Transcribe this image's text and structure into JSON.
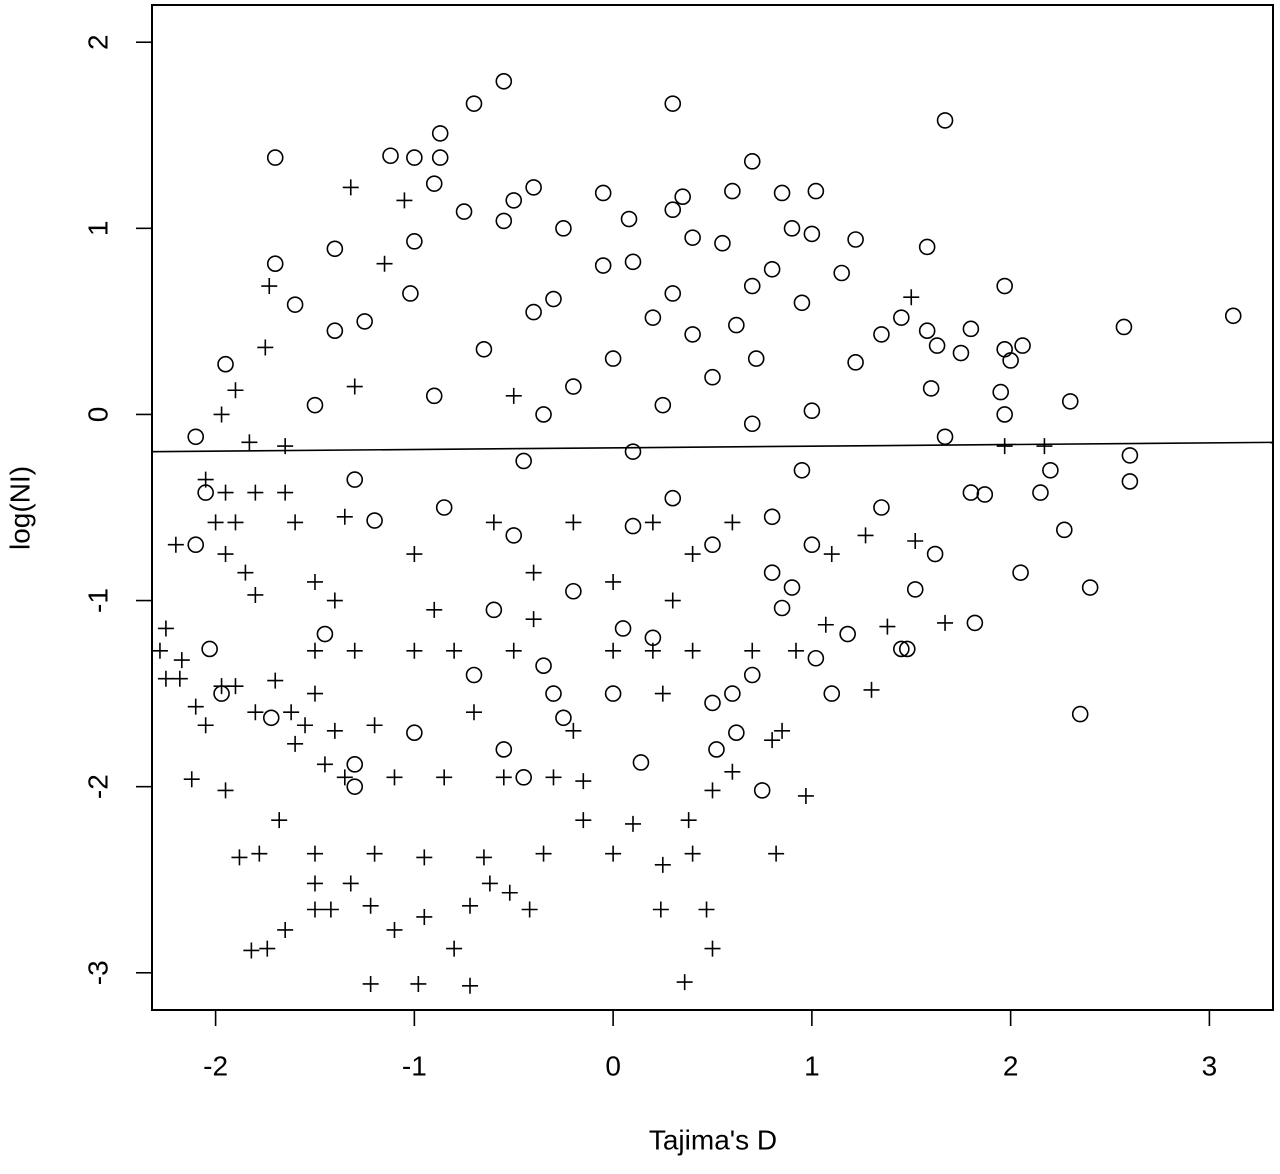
{
  "chart_data": {
    "type": "scatter",
    "x_label": "Tajima's D",
    "y_label": "log(NI)",
    "xlim": [
      -2.32,
      3.32
    ],
    "ylim": [
      -3.2,
      2.2
    ],
    "xticks": [
      -2,
      -1,
      0,
      1,
      2,
      3
    ],
    "yticks": [
      -3,
      -2,
      -1,
      0,
      1,
      2
    ],
    "series": [
      {
        "marker": "circle",
        "color": "#000000",
        "x": [
          -0.55,
          -0.7,
          0.3,
          1.67,
          -0.87,
          -1.7,
          -1.12,
          -1.0,
          -0.87,
          0.7,
          -0.9,
          -0.4,
          0.6,
          1.02,
          0.85,
          -0.05,
          0.35,
          -0.5,
          -0.75,
          0.3,
          0.08,
          -0.55,
          0.9,
          -0.25,
          1.0,
          1.22,
          -1.0,
          1.58,
          -1.4,
          0.55,
          0.4,
          -1.7,
          0.1,
          0.8,
          1.15,
          -0.05,
          1.97,
          0.7,
          -1.02,
          -0.3,
          0.3,
          -1.6,
          0.95,
          1.45,
          -0.4,
          0.2,
          3.12,
          2.57,
          1.8,
          -1.25,
          0.62,
          1.58,
          -1.4,
          0.4,
          1.35,
          2.06,
          1.63,
          1.75,
          1.97,
          -0.65,
          0.0,
          0.72,
          -1.95,
          2.0,
          1.22,
          0.5,
          -0.2,
          1.6,
          1.95,
          -0.9,
          0.25,
          2.3,
          1.0,
          -1.5,
          1.97,
          -0.35,
          0.7,
          -2.1,
          1.67,
          0.1,
          2.6,
          -0.45,
          2.2,
          0.95,
          -1.3,
          2.6,
          -2.05,
          1.8,
          1.87,
          2.15,
          0.3,
          -0.85,
          1.35,
          0.8,
          -1.2,
          2.27,
          0.1,
          -0.5,
          1.62,
          -2.1,
          1.0,
          0.5,
          2.05,
          0.8,
          2.4,
          1.52,
          -0.2,
          0.9,
          0.85,
          -0.6,
          1.82,
          0.05,
          1.18,
          -1.45,
          0.2,
          1.45,
          1.48,
          -2.03,
          1.02,
          -0.35,
          0.7,
          -0.7,
          -1.97,
          1.1,
          0.6,
          0.0,
          -0.3,
          0.5,
          2.35,
          -1.72,
          -0.25,
          0.62,
          -1.0,
          0.52,
          -0.55,
          0.14,
          -1.3,
          -0.45,
          0.75,
          -1.3
        ],
        "values": [
          1.79,
          1.67,
          1.67,
          1.58,
          1.51,
          1.38,
          1.39,
          1.38,
          1.38,
          1.36,
          1.24,
          1.22,
          1.2,
          1.2,
          1.19,
          1.19,
          1.17,
          1.15,
          1.09,
          1.1,
          1.05,
          1.04,
          1.0,
          1.0,
          0.97,
          0.94,
          0.93,
          0.9,
          0.89,
          0.92,
          0.95,
          0.81,
          0.82,
          0.78,
          0.76,
          0.8,
          0.69,
          0.69,
          0.65,
          0.62,
          0.65,
          0.59,
          0.6,
          0.52,
          0.55,
          0.52,
          0.53,
          0.47,
          0.46,
          0.5,
          0.48,
          0.45,
          0.45,
          0.43,
          0.43,
          0.37,
          0.37,
          0.33,
          0.35,
          0.35,
          0.3,
          0.3,
          0.27,
          0.29,
          0.28,
          0.2,
          0.15,
          0.14,
          0.12,
          0.1,
          0.05,
          0.07,
          0.02,
          0.05,
          0.0,
          0.0,
          -0.05,
          -0.12,
          -0.12,
          -0.2,
          -0.22,
          -0.25,
          -0.3,
          -0.3,
          -0.35,
          -0.36,
          -0.42,
          -0.42,
          -0.43,
          -0.42,
          -0.45,
          -0.5,
          -0.5,
          -0.55,
          -0.57,
          -0.62,
          -0.6,
          -0.65,
          -0.75,
          -0.7,
          -0.7,
          -0.7,
          -0.85,
          -0.85,
          -0.93,
          -0.94,
          -0.95,
          -0.93,
          -1.04,
          -1.05,
          -1.12,
          -1.15,
          -1.18,
          -1.18,
          -1.2,
          -1.26,
          -1.26,
          -1.26,
          -1.31,
          -1.35,
          -1.4,
          -1.4,
          -1.5,
          -1.5,
          -1.5,
          -1.5,
          -1.5,
          -1.55,
          -1.61,
          -1.63,
          -1.63,
          -1.71,
          -1.71,
          -1.8,
          -1.8,
          -1.87,
          -1.88,
          -1.95,
          -2.02,
          -2.0
        ]
      },
      {
        "marker": "plus",
        "color": "#000000",
        "x": [
          -1.32,
          -1.05,
          -1.15,
          -1.73,
          1.5,
          -1.75,
          -1.9,
          -1.97,
          -1.3,
          -0.5,
          -1.83,
          -1.65,
          -2.05,
          -1.95,
          -1.8,
          -1.65,
          -1.9,
          -1.6,
          -2.0,
          -1.35,
          2.17,
          1.97,
          1.52,
          1.67,
          1.1,
          1.27,
          -2.2,
          -1.95,
          -1.85,
          -1.5,
          -1.8,
          -1.4,
          -2.25,
          -2.28,
          -2.17,
          -2.25,
          -2.18,
          -1.97,
          -1.9,
          -1.7,
          -1.5,
          -2.1,
          -2.05,
          -1.8,
          -1.62,
          -1.55,
          -1.4,
          -1.2,
          -1.6,
          -1.45,
          -1.35,
          -1.1,
          -0.85,
          -0.55,
          -0.3,
          -0.15,
          -2.12,
          -1.95,
          -1.68,
          -1.88,
          -1.78,
          -1.5,
          -1.2,
          -0.95,
          -0.65,
          -0.35,
          0.0,
          -1.5,
          -1.32,
          -0.62,
          -0.52,
          -1.5,
          -1.42,
          -1.22,
          -0.95,
          -0.72,
          -0.42,
          0.24,
          0.47,
          -1.65,
          -1.1,
          -1.82,
          -1.74,
          -0.8,
          0.5,
          -1.22,
          -0.98,
          -0.72,
          0.36,
          0.25,
          0.4,
          0.82,
          0.97,
          0.5,
          0.6,
          0.8,
          0.85,
          1.3,
          1.38,
          1.07,
          0.92,
          0.4,
          0.0,
          -0.5,
          -1.0,
          -1.5,
          -1.3,
          -0.8,
          0.2,
          0.7,
          -0.2,
          0.2,
          -0.6,
          0.6,
          -1.0,
          -0.4,
          0.0,
          0.4,
          -0.9,
          -0.4,
          0.3,
          -0.7,
          -0.2,
          0.25,
          0.1,
          -0.15,
          0.38
        ],
        "values": [
          1.22,
          1.15,
          0.81,
          0.69,
          0.63,
          0.36,
          0.13,
          0.0,
          0.15,
          0.1,
          -0.15,
          -0.17,
          -0.35,
          -0.42,
          -0.42,
          -0.42,
          -0.58,
          -0.58,
          -0.58,
          -0.55,
          -0.17,
          -0.17,
          -0.68,
          -1.12,
          -0.75,
          -0.65,
          -0.7,
          -0.75,
          -0.85,
          -0.9,
          -0.97,
          -1.0,
          -1.15,
          -1.27,
          -1.32,
          -1.42,
          -1.42,
          -1.46,
          -1.46,
          -1.43,
          -1.5,
          -1.57,
          -1.67,
          -1.6,
          -1.6,
          -1.67,
          -1.7,
          -1.67,
          -1.77,
          -1.88,
          -1.95,
          -1.95,
          -1.95,
          -1.95,
          -1.95,
          -1.97,
          -1.96,
          -2.02,
          -2.18,
          -2.38,
          -2.36,
          -2.36,
          -2.36,
          -2.38,
          -2.38,
          -2.36,
          -2.36,
          -2.52,
          -2.52,
          -2.52,
          -2.57,
          -2.66,
          -2.66,
          -2.64,
          -2.7,
          -2.64,
          -2.66,
          -2.66,
          -2.66,
          -2.77,
          -2.77,
          -2.88,
          -2.87,
          -2.87,
          -2.87,
          -3.06,
          -3.06,
          -3.07,
          -3.05,
          -2.42,
          -2.36,
          -2.36,
          -2.05,
          -2.02,
          -1.92,
          -1.75,
          -1.7,
          -1.48,
          -1.14,
          -1.13,
          -1.27,
          -1.27,
          -1.27,
          -1.27,
          -1.27,
          -1.27,
          -1.27,
          -1.27,
          -1.27,
          -1.27,
          -0.58,
          -0.58,
          -0.58,
          -0.58,
          -0.75,
          -0.85,
          -0.9,
          -0.75,
          -1.05,
          -1.1,
          -1.0,
          -1.6,
          -1.7,
          -1.5,
          -2.2,
          -2.18,
          -2.18
        ]
      }
    ],
    "trend_line": {
      "x": [
        -2.32,
        3.32
      ],
      "values": [
        -0.2,
        -0.15
      ]
    }
  }
}
